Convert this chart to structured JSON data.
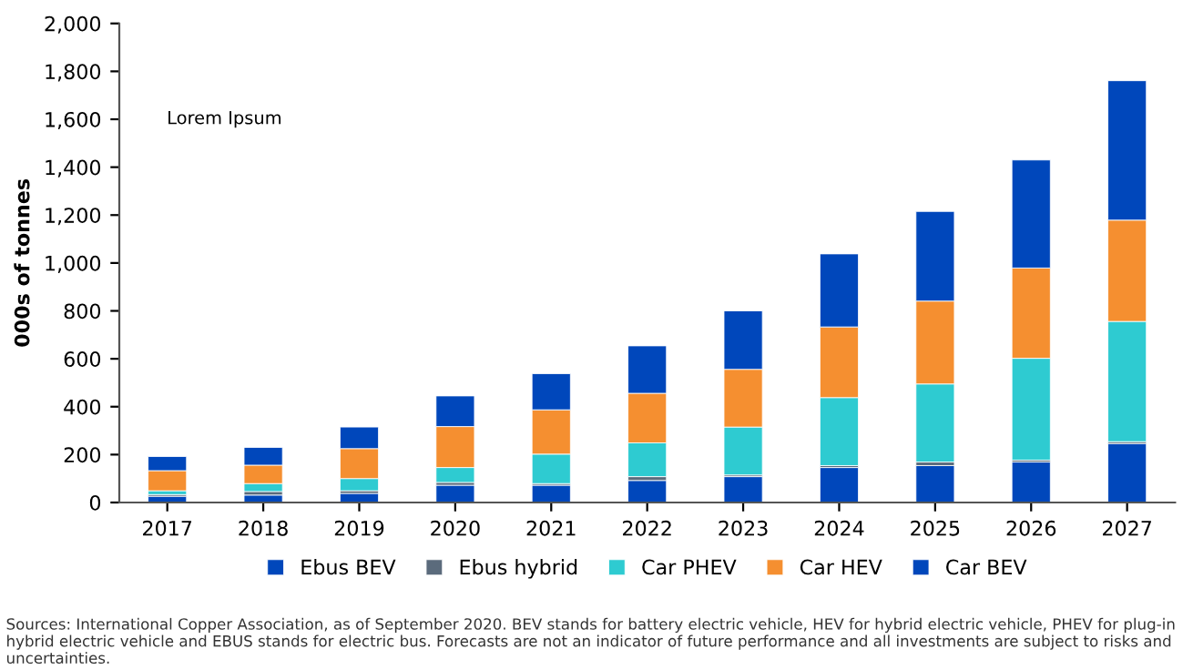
{
  "chart_data": {
    "type": "bar",
    "stacked": true,
    "ylabel": "000s of tonnes",
    "categories": [
      "2017",
      "2018",
      "2019",
      "2020",
      "2021",
      "2022",
      "2023",
      "2024",
      "2025",
      "2026",
      "2027"
    ],
    "series": [
      {
        "name": "Car BEV",
        "color": "#0047bb",
        "values": [
          26,
          31,
          38,
          72,
          72,
          92,
          108,
          146,
          154,
          169,
          246
        ]
      },
      {
        "name": "Ebus hybrid",
        "color": "#5b6b7c",
        "values": [
          7,
          15,
          11,
          12,
          7,
          16,
          7,
          8,
          15,
          8,
          8
        ]
      },
      {
        "name": "Car PHEV",
        "color": "#2ecbd1",
        "values": [
          16,
          33,
          51,
          62,
          123,
          141,
          200,
          284,
          326,
          425,
          502
        ]
      },
      {
        "name": "Car HEV",
        "color": "#f58f30",
        "values": [
          84,
          77,
          125,
          171,
          185,
          207,
          241,
          295,
          346,
          377,
          423
        ]
      },
      {
        "name": "Ebus BEV",
        "color": "#0047bb",
        "values": [
          59,
          74,
          90,
          128,
          151,
          198,
          244,
          305,
          374,
          451,
          582
        ]
      }
    ],
    "ylim": [
      0,
      2000
    ],
    "yticks": [
      0,
      200,
      400,
      600,
      800,
      {
        "value": 1000,
        "label": "1,000"
      },
      {
        "value": 1200,
        "label": "1,200"
      },
      {
        "value": 1400,
        "label": "1,400"
      },
      {
        "value": 1600,
        "label": "1,600"
      },
      {
        "value": 1800,
        "label": "1,800"
      },
      {
        "value": 2000,
        "label": "2,000"
      }
    ],
    "grid": false,
    "legend": "bottom",
    "annotations": [
      "Lorem Ipsum",
      "Sources: International Copper Association, as of September 2020. BEV stands for battery electric vehicle, HEV for hybrid electric vehicle, PHEV for plug-in hybrid electric vehicle and EBUS stands for electric bus. Forecasts are not an indicator of future performance and all investments are subject to risks and uncertainties."
    ]
  }
}
